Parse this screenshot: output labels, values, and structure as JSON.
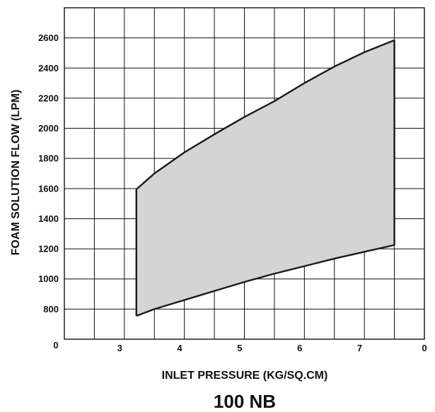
{
  "chart_data": {
    "type": "area",
    "title": "100 NB",
    "xlabel": "INLET PRESSURE (KG/SQ.CM)",
    "ylabel": "FOAM SOLUTION FLOW (LPM)",
    "xlim": [
      2,
      8
    ],
    "ylim": [
      600,
      2800
    ],
    "x_tick_labels": [
      {
        "value": 3,
        "label": "3"
      },
      {
        "value": 4,
        "label": "4"
      },
      {
        "value": 5,
        "label": "5"
      },
      {
        "value": 6,
        "label": "6"
      },
      {
        "value": 7,
        "label": "7"
      }
    ],
    "x_corner_labels": {
      "origin": "0",
      "right": "0"
    },
    "y_tick_labels": [
      {
        "value": 800,
        "label": "800"
      },
      {
        "value": 1000,
        "label": "1000"
      },
      {
        "value": 1200,
        "label": "1200"
      },
      {
        "value": 1400,
        "label": "1400"
      },
      {
        "value": 1600,
        "label": "1600"
      },
      {
        "value": 1800,
        "label": "1800"
      },
      {
        "value": 2000,
        "label": "2000"
      },
      {
        "value": 2200,
        "label": "2200"
      },
      {
        "value": 2400,
        "label": "2400"
      },
      {
        "value": 2600,
        "label": "2600"
      }
    ],
    "grid": true,
    "fill_color": "#d4d4d4",
    "line_color": "#1a1a1a",
    "upper_boundary": [
      {
        "x": 3.2,
        "y": 1595
      },
      {
        "x": 3.5,
        "y": 1700
      },
      {
        "x": 4.0,
        "y": 1840
      },
      {
        "x": 4.5,
        "y": 1960
      },
      {
        "x": 5.0,
        "y": 2075
      },
      {
        "x": 5.5,
        "y": 2180
      },
      {
        "x": 6.0,
        "y": 2300
      },
      {
        "x": 6.5,
        "y": 2410
      },
      {
        "x": 7.0,
        "y": 2505
      },
      {
        "x": 7.5,
        "y": 2585
      }
    ],
    "lower_boundary": [
      {
        "x": 3.2,
        "y": 755
      },
      {
        "x": 3.5,
        "y": 800
      },
      {
        "x": 4.0,
        "y": 860
      },
      {
        "x": 4.5,
        "y": 920
      },
      {
        "x": 5.0,
        "y": 980
      },
      {
        "x": 5.5,
        "y": 1035
      },
      {
        "x": 6.0,
        "y": 1085
      },
      {
        "x": 6.5,
        "y": 1135
      },
      {
        "x": 7.0,
        "y": 1180
      },
      {
        "x": 7.5,
        "y": 1225
      }
    ]
  }
}
